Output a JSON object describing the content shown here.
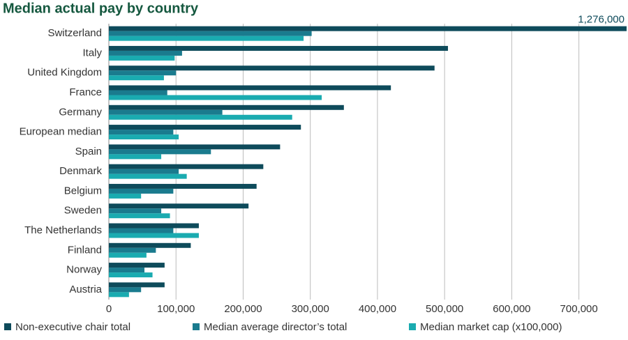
{
  "chart_data": {
    "type": "hbar",
    "title": "Median actual pay by country",
    "categories": [
      "Switzerland",
      "Italy",
      "United Kingdom",
      "France",
      "Germany",
      "European median",
      "Spain",
      "Denmark",
      "Belgium",
      "Sweden",
      "The Netherlands",
      "Finland",
      "Norway",
      "Austria"
    ],
    "series": [
      {
        "name": "Non-executive chair total",
        "color": "#0e4b5b",
        "values": [
          1276000,
          505000,
          485000,
          420000,
          350000,
          286000,
          255000,
          230000,
          220000,
          208000,
          134000,
          122000,
          83000,
          83000
        ],
        "value_labels": [
          "1,276,000",
          null,
          null,
          null,
          null,
          null,
          null,
          null,
          null,
          null,
          null,
          null,
          null,
          null
        ]
      },
      {
        "name": "Median average director’s total",
        "color": "#1a7b8e",
        "values": [
          302000,
          109000,
          100000,
          87000,
          169000,
          96000,
          152000,
          104000,
          96000,
          78000,
          96000,
          70000,
          53000,
          48000
        ]
      },
      {
        "name": "Median market cap (x100,000)",
        "color": "#1aabb0",
        "values": [
          290000,
          98000,
          82000,
          317000,
          273000,
          104000,
          78000,
          116000,
          48000,
          91000,
          134000,
          56000,
          65000,
          30000
        ]
      }
    ],
    "xlim": [
      0,
      770000
    ],
    "xticks": [
      0,
      {
        "value": 100000,
        "label": "100,000"
      },
      {
        "value": 200000,
        "label": "200,000"
      },
      {
        "value": 300000,
        "label": "300,000"
      },
      {
        "value": 400000,
        "label": "400,000"
      },
      {
        "value": 500000,
        "label": "500,000"
      },
      {
        "value": 600000,
        "label": "600,000"
      },
      {
        "value": 700000,
        "label": "700,000"
      }
    ],
    "grid": true,
    "legend": "bottom"
  }
}
